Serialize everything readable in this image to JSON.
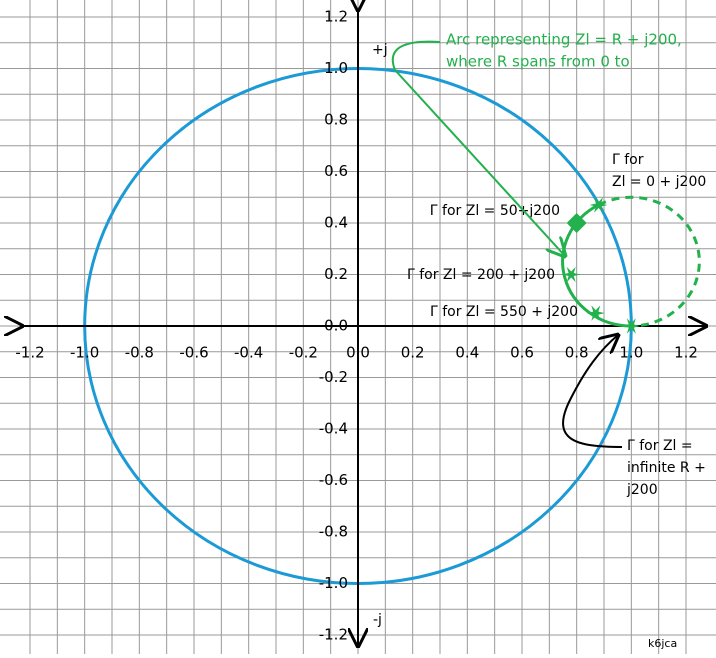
{
  "chart_data": {
    "type": "scatter",
    "xlim": [
      -1.2,
      1.2
    ],
    "ylim": [
      -1.2,
      1.2
    ],
    "xticks": [
      -1.2,
      {
        "value": -1.0,
        "label": "-1.0"
      },
      -0.8,
      -0.6,
      -0.4,
      -0.2,
      {
        "value": 0.0,
        "label": "0.0"
      },
      0.2,
      0.4,
      0.6,
      0.8,
      {
        "value": 1.0,
        "label": "1.0"
      },
      1.2
    ],
    "yticks": [
      -1.2,
      {
        "value": -1.0,
        "label": "-1.0"
      },
      -0.8,
      -0.6,
      -0.4,
      -0.2,
      {
        "value": 0.0,
        "label": "0.0"
      },
      0.2,
      0.4,
      0.6,
      0.8,
      {
        "value": 1.0,
        "label": "1.0"
      },
      1.2
    ],
    "grid": true,
    "circle_color": "#1b9ad6",
    "color": "#22b14c",
    "x": [
      0.88,
      0.8,
      0.78,
      0.87,
      1.0
    ],
    "y": [
      0.47,
      0.4,
      0.2,
      0.05,
      0.0
    ],
    "markers": [
      "star",
      "diamond",
      "star",
      "star",
      "star"
    ],
    "point_labels": [
      [
        "Γ for",
        "Zl = 0 + j200"
      ],
      [
        "Γ for Zl = 50+j200"
      ],
      [
        "Γ for  Zl = 200 + j200"
      ],
      [
        "Γ for Zl = 550 + j200"
      ],
      [
        "Γ for  Zl =",
        "infinite R +",
        "j200"
      ]
    ],
    "annotations": {
      "plus_j": "+j",
      "minus_j": "-j",
      "credit": "k6jca",
      "arc_note": [
        "Arc representing Zl = R + j200,",
        "where R spans from 0 to"
      ]
    }
  }
}
